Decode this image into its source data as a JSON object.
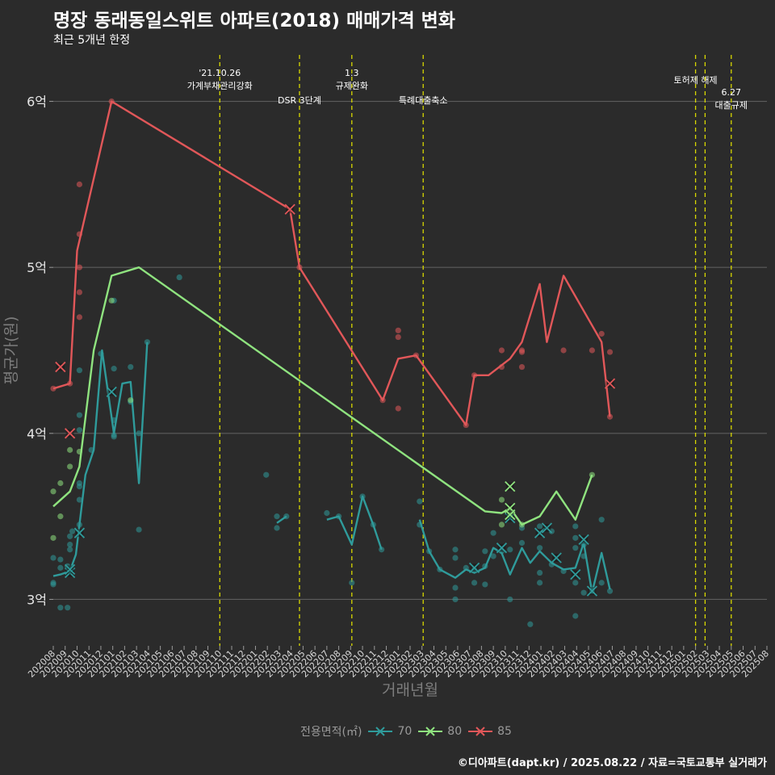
{
  "title": "명장 동래동일스위트 아파트(2018) 매매가격 변화",
  "subtitle": "최근 5개년 한정",
  "caption": "©디아파트(dapt.kr) / 2025.08.22 / 자료=국토교통부 실거래가",
  "chart_data": {
    "type": "line",
    "xlabel": "거래년월",
    "ylabel": "평균가(원)",
    "x_categories": [
      "202008",
      "202009",
      "202010",
      "202011",
      "202012",
      "202101",
      "202102",
      "202103",
      "202104",
      "202105",
      "202106",
      "202107",
      "202108",
      "202109",
      "202110",
      "202111",
      "202112",
      "202201",
      "202202",
      "202203",
      "202204",
      "202205",
      "202206",
      "202207",
      "202208",
      "202209",
      "202210",
      "202211",
      "202212",
      "202301",
      "202302",
      "202303",
      "202304",
      "202305",
      "202306",
      "202307",
      "202308",
      "202309",
      "202310",
      "202311",
      "202312",
      "202401",
      "202402",
      "202403",
      "202404",
      "202405",
      "202406",
      "202407",
      "202408",
      "202409",
      "202410",
      "202411",
      "202412",
      "202501",
      "202502",
      "202503",
      "202504",
      "202505",
      "202506",
      "202507",
      "202508"
    ],
    "y_ticks": [
      {
        "value": 300000000,
        "label": "3억"
      },
      {
        "value": 400000000,
        "label": "4억"
      },
      {
        "value": 500000000,
        "label": "5억"
      },
      {
        "value": 600000000,
        "label": "6억"
      }
    ],
    "ylim": [
      272000000,
      628000000
    ],
    "grid": "horizontal",
    "legend_title": "전용면적(㎡)",
    "legend_position": "bottom",
    "events": [
      {
        "x": 14.0,
        "lines": [
          "'21.10.26",
          "가계부채관리강화"
        ],
        "level": "upper"
      },
      {
        "x": 20.7,
        "lines": [
          "DSR 3단계"
        ],
        "level": "lower"
      },
      {
        "x": 25.1,
        "lines": [
          "1.3",
          "규제완화"
        ],
        "level": "upper"
      },
      {
        "x": 31.1,
        "lines": [
          "특례대출축소"
        ],
        "level": "lower"
      },
      {
        "x": 54.0,
        "lines": [
          "토허제 해제"
        ],
        "level": "upper2"
      },
      {
        "x": 54.8,
        "lines": [],
        "level": "upper2"
      },
      {
        "x": 57.0,
        "lines": [
          "6.27",
          "대출규제"
        ],
        "level": "lower2"
      }
    ],
    "series": [
      {
        "name": "70",
        "color": "#2f9b9b",
        "lines": [
          [
            [
              0,
              314000000
            ],
            [
              0.6,
              315000000
            ],
            [
              1.4,
              317000000
            ],
            [
              1.9,
              327000000
            ],
            [
              2.7,
              375000000
            ],
            [
              3.4,
              390000000
            ],
            [
              4.1,
              450000000
            ],
            [
              5.1,
              400000000
            ],
            [
              5.8,
              430000000
            ],
            [
              6.5,
              431000000
            ],
            [
              7.2,
              370000000
            ],
            [
              7.9,
              455000000
            ]
          ],
          [
            [
              18.8,
              346000000
            ],
            [
              19.6,
              350000000
            ]
          ],
          [
            [
              23.0,
              348000000
            ],
            [
              24.0,
              350000000
            ],
            [
              25.1,
              333000000
            ],
            [
              26.0,
              362000000
            ],
            [
              26.9,
              345000000
            ],
            [
              27.6,
              330000000
            ]
          ],
          [
            [
              30.8,
              348000000
            ],
            [
              31.6,
              329000000
            ],
            [
              32.5,
              318000000
            ],
            [
              33.8,
              313000000
            ],
            [
              34.7,
              318000000
            ],
            [
              35.4,
              316000000
            ],
            [
              36.3,
              319000000
            ],
            [
              37.0,
              331000000
            ],
            [
              37.7,
              328000000
            ],
            [
              38.4,
              315000000
            ],
            [
              39.4,
              331000000
            ],
            [
              40.1,
              322000000
            ],
            [
              40.9,
              329000000
            ],
            [
              41.9,
              322000000
            ],
            [
              42.9,
              318000000
            ],
            [
              43.9,
              319000000
            ],
            [
              44.6,
              334000000
            ],
            [
              45.3,
              304000000
            ],
            [
              46.1,
              328000000
            ],
            [
              46.8,
              306000000
            ]
          ]
        ],
        "points": [
          [
            0,
            309000000
          ],
          [
            0,
            310000000
          ],
          [
            0,
            325000000
          ],
          [
            0.6,
            295000000
          ],
          [
            0.6,
            319000000
          ],
          [
            0.6,
            324000000
          ],
          [
            1.2,
            320000000
          ],
          [
            1.2,
            295000000
          ],
          [
            1.4,
            330000000
          ],
          [
            1.4,
            333000000
          ],
          [
            1.4,
            338000000
          ],
          [
            1.6,
            341000000
          ],
          [
            2.2,
            402000000
          ],
          [
            2.2,
            411000000
          ],
          [
            2.2,
            438000000
          ],
          [
            2.2,
            370000000
          ],
          [
            2.2,
            368000000
          ],
          [
            2.2,
            360000000
          ],
          [
            2.2,
            345000000
          ],
          [
            3.2,
            390000000
          ],
          [
            4.0,
            448000000
          ],
          [
            5.1,
            399000000
          ],
          [
            5.1,
            408000000
          ],
          [
            5.1,
            398000000
          ],
          [
            5.1,
            439000000
          ],
          [
            5.1,
            480000000
          ],
          [
            6.5,
            440000000
          ],
          [
            6.5,
            419000000
          ],
          [
            7.2,
            342000000
          ],
          [
            7.2,
            400000000
          ],
          [
            7.9,
            455000000
          ],
          [
            10.6,
            494000000
          ],
          [
            17.9,
            375000000
          ],
          [
            18.8,
            343000000
          ],
          [
            18.8,
            350000000
          ],
          [
            19.6,
            350000000
          ],
          [
            23.0,
            352000000
          ],
          [
            24.0,
            350000000
          ],
          [
            25.1,
            310000000
          ],
          [
            26.0,
            362000000
          ],
          [
            26.9,
            345000000
          ],
          [
            27.6,
            330000000
          ],
          [
            30.8,
            345000000
          ],
          [
            30.8,
            359000000
          ],
          [
            31.6,
            329000000
          ],
          [
            32.5,
            318000000
          ],
          [
            33.8,
            307000000
          ],
          [
            33.8,
            300000000
          ],
          [
            33.8,
            330000000
          ],
          [
            33.8,
            325000000
          ],
          [
            34.7,
            319000000
          ],
          [
            35.4,
            318000000
          ],
          [
            35.4,
            310000000
          ],
          [
            36.3,
            309000000
          ],
          [
            36.3,
            329000000
          ],
          [
            36.3,
            320000000
          ],
          [
            37.0,
            326000000
          ],
          [
            37.0,
            340000000
          ],
          [
            37.7,
            329000000
          ],
          [
            38.4,
            330000000
          ],
          [
            38.4,
            300000000
          ],
          [
            39.4,
            334000000
          ],
          [
            39.4,
            343000000
          ],
          [
            40.1,
            285000000
          ],
          [
            40.9,
            344000000
          ],
          [
            40.9,
            331000000
          ],
          [
            40.9,
            316000000
          ],
          [
            40.9,
            310000000
          ],
          [
            41.9,
            321000000
          ],
          [
            41.9,
            341000000
          ],
          [
            42.9,
            317000000
          ],
          [
            43.9,
            344000000
          ],
          [
            43.9,
            337000000
          ],
          [
            43.9,
            331000000
          ],
          [
            43.9,
            310000000
          ],
          [
            43.9,
            290000000
          ],
          [
            44.6,
            333000000
          ],
          [
            44.6,
            326000000
          ],
          [
            44.6,
            304000000
          ],
          [
            45.3,
            305000000
          ],
          [
            46.1,
            348000000
          ],
          [
            46.1,
            310000000
          ],
          [
            46.8,
            305000000
          ]
        ],
        "crosses": [
          [
            1.4,
            316000000
          ],
          [
            1.4,
            318000000
          ],
          [
            2.2,
            340000000
          ],
          [
            4.9,
            425000000
          ],
          [
            35.4,
            319000000
          ],
          [
            37.7,
            331000000
          ],
          [
            38.4,
            349000000
          ],
          [
            40.9,
            340000000
          ],
          [
            41.5,
            343000000
          ],
          [
            42.3,
            325000000
          ],
          [
            43.9,
            315000000
          ],
          [
            44.6,
            336000000
          ],
          [
            45.3,
            305000000
          ]
        ]
      },
      {
        "name": "80",
        "color": "#8fe37f",
        "lines": [
          [
            [
              0,
              356000000
            ],
            [
              1.4,
              365000000
            ],
            [
              2.2,
              380000000
            ],
            [
              3.4,
              450000000
            ],
            [
              4.9,
              495000000
            ],
            [
              7.2,
              500000000
            ],
            [
              36.3,
              353000000
            ],
            [
              37.7,
              352000000
            ],
            [
              38.4,
              355000000
            ],
            [
              39.4,
              345000000
            ],
            [
              40.9,
              350000000
            ],
            [
              42.3,
              365000000
            ],
            [
              43.9,
              348000000
            ],
            [
              45.3,
              375000000
            ]
          ]
        ],
        "points": [
          [
            0,
            365000000
          ],
          [
            0,
            337000000
          ],
          [
            0.6,
            350000000
          ],
          [
            0.6,
            370000000
          ],
          [
            1.4,
            380000000
          ],
          [
            1.4,
            390000000
          ],
          [
            2.2,
            389000000
          ],
          [
            4.9,
            480000000
          ],
          [
            6.5,
            420000000
          ],
          [
            37.7,
            360000000
          ],
          [
            37.7,
            345000000
          ],
          [
            38.4,
            352000000
          ],
          [
            39.4,
            345000000
          ],
          [
            45.3,
            375000000
          ]
        ],
        "crosses": [
          [
            38.4,
            368000000
          ],
          [
            38.4,
            355000000
          ],
          [
            38.4,
            351000000
          ]
        ]
      },
      {
        "name": "85",
        "color": "#e15759",
        "lines": [
          [
            [
              0,
              427000000
            ],
            [
              1.4,
              430000000
            ],
            [
              2.0,
              510000000
            ],
            [
              4.9,
              600000000
            ],
            [
              19.9,
              535000000
            ],
            [
              20.7,
              500000000
            ],
            [
              27.7,
              420000000
            ],
            [
              29.0,
              445000000
            ],
            [
              30.5,
              447000000
            ],
            [
              34.7,
              405000000
            ],
            [
              35.4,
              435000000
            ],
            [
              36.6,
              435000000
            ],
            [
              38.4,
              445000000
            ],
            [
              39.4,
              455000000
            ],
            [
              40.9,
              490000000
            ],
            [
              41.5,
              455000000
            ],
            [
              42.9,
              495000000
            ],
            [
              46.1,
              455000000
            ],
            [
              46.8,
              410000000
            ]
          ]
        ],
        "points": [
          [
            0,
            427000000
          ],
          [
            1.4,
            430000000
          ],
          [
            2.2,
            550000000
          ],
          [
            2.2,
            520000000
          ],
          [
            2.2,
            485000000
          ],
          [
            2.2,
            470000000
          ],
          [
            2.2,
            500000000
          ],
          [
            4.9,
            600000000
          ],
          [
            20.7,
            500000000
          ],
          [
            27.7,
            420000000
          ],
          [
            29.0,
            462000000
          ],
          [
            29.0,
            458000000
          ],
          [
            29.0,
            415000000
          ],
          [
            30.5,
            447000000
          ],
          [
            34.7,
            405000000
          ],
          [
            35.4,
            435000000
          ],
          [
            37.7,
            440000000
          ],
          [
            37.7,
            450000000
          ],
          [
            39.4,
            449000000
          ],
          [
            39.4,
            450000000
          ],
          [
            39.4,
            440000000
          ],
          [
            42.9,
            450000000
          ],
          [
            45.3,
            450000000
          ],
          [
            46.1,
            460000000
          ],
          [
            46.8,
            449000000
          ],
          [
            46.8,
            410000000
          ]
        ],
        "crosses": [
          [
            0.6,
            440000000
          ],
          [
            1.4,
            400000000
          ],
          [
            19.9,
            535000000
          ],
          [
            46.8,
            430000000
          ]
        ]
      }
    ]
  }
}
